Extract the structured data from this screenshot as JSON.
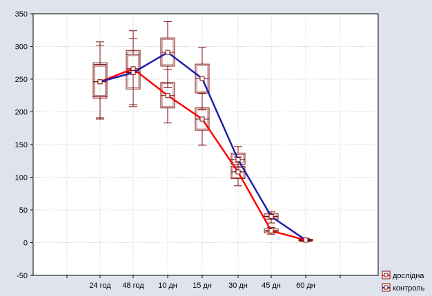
{
  "chart_data": {
    "type": "box",
    "categories": [
      "24 год",
      "48 год",
      "10 дн",
      "15 дн",
      "30 дн",
      "45 дн",
      "60 дн"
    ],
    "ylim": [
      -50,
      350
    ],
    "yticks": [
      -50,
      0,
      50,
      100,
      150,
      200,
      250,
      300,
      350
    ],
    "grid": true,
    "legend_position": "bottom-right",
    "series": [
      {
        "name": "дослідна",
        "color": "#ff0000",
        "means": [
          246,
          266,
          225,
          189,
          108,
          18,
          4
        ],
        "box_low": [
          221,
          235,
          206,
          172,
          98,
          15,
          3
        ],
        "box_high": [
          272,
          288,
          245,
          206,
          117,
          21,
          5
        ],
        "whisker_low": [
          191,
          208,
          183,
          149,
          87,
          13,
          2
        ],
        "whisker_high": [
          302,
          312,
          265,
          228,
          131,
          23,
          6
        ]
      },
      {
        "name": "контроль",
        "color": "#1f1fa8",
        "means": [
          246,
          260,
          291,
          251,
          127,
          40,
          4
        ],
        "box_low": [
          223,
          261,
          270,
          229,
          120,
          36,
          3
        ],
        "box_high": [
          275,
          294,
          313,
          273,
          137,
          44,
          5
        ],
        "whisker_low": [
          189,
          211,
          237,
          203,
          109,
          30,
          2
        ],
        "whisker_high": [
          307,
          324,
          338,
          299,
          147,
          47,
          6
        ]
      }
    ]
  }
}
